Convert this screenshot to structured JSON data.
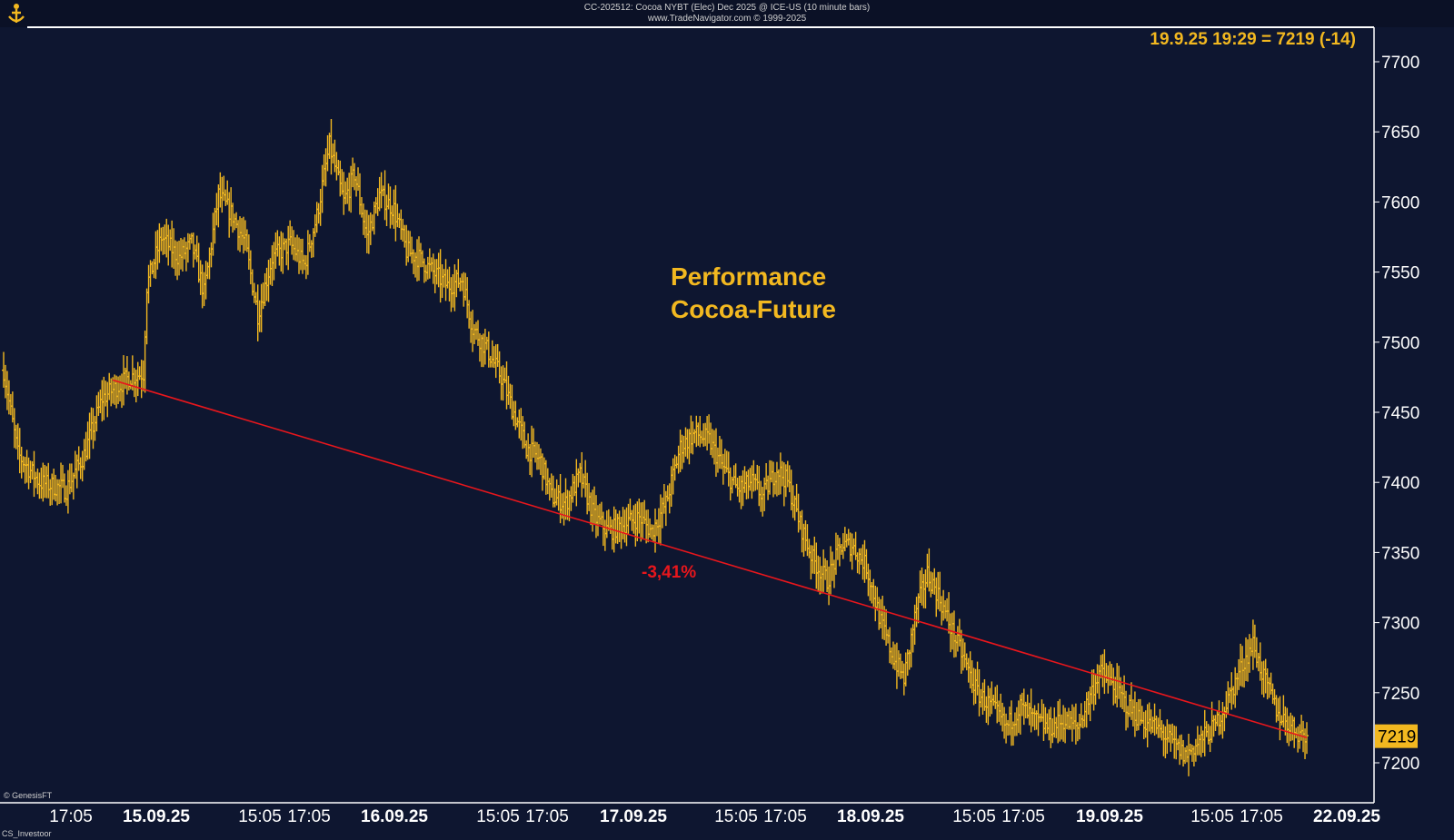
{
  "header": {
    "line1": "CC-202512:  Cocoa NYBT (Elec) Dec 2025 @ ICE-US  (10 minute bars)",
    "line2": "www.TradeNavigator.com © 1999-2025"
  },
  "corner": {
    "bottom_left_1": "© GenesisFT",
    "bottom_left_2": "CS_Investoor"
  },
  "colors": {
    "background": "#0e1630",
    "bars": "#f2b820",
    "trendline": "#e8161c",
    "title": "#f2b820"
  },
  "chart_data": {
    "type": "ohlc",
    "title": "Performance\nCocoa-Future",
    "title_lines": [
      "Performance",
      "Cocoa-Future"
    ],
    "last_price_readout": "19.9.25 19:29 = 7219 (-14)",
    "last_price_tag": "7219",
    "last_price": 7219,
    "ylim": [
      7170,
      7720
    ],
    "y_ticks": [
      7200,
      7250,
      7300,
      7350,
      7400,
      7450,
      7500,
      7550,
      7600,
      7650,
      7700
    ],
    "x_tick_labels": [
      {
        "label": "17:05",
        "bold": false
      },
      {
        "label": "15.09.25",
        "bold": true
      },
      {
        "label": "15:05",
        "bold": false
      },
      {
        "label": "17:05",
        "bold": false
      },
      {
        "label": "16.09.25",
        "bold": true
      },
      {
        "label": "15:05",
        "bold": false
      },
      {
        "label": "17:05",
        "bold": false
      },
      {
        "label": "17.09.25",
        "bold": true
      },
      {
        "label": "15:05",
        "bold": false
      },
      {
        "label": "17:05",
        "bold": false
      },
      {
        "label": "18.09.25",
        "bold": true
      },
      {
        "label": "15:05",
        "bold": false
      },
      {
        "label": "17:05",
        "bold": false
      },
      {
        "label": "19.09.25",
        "bold": true
      },
      {
        "label": "15:05",
        "bold": false
      },
      {
        "label": "17:05",
        "bold": false
      },
      {
        "label": "22.09.25",
        "bold": true
      }
    ],
    "trendline": {
      "start_price": 7473,
      "end_price": 7218,
      "label": "-3,41%"
    },
    "price_path": [
      [
        0,
        7480
      ],
      [
        8,
        7420
      ],
      [
        20,
        7400
      ],
      [
        35,
        7395
      ],
      [
        45,
        7420
      ],
      [
        55,
        7460
      ],
      [
        70,
        7475
      ],
      [
        78,
        7478
      ],
      [
        80,
        7540
      ],
      [
        88,
        7575
      ],
      [
        98,
        7560
      ],
      [
        105,
        7570
      ],
      [
        112,
        7535
      ],
      [
        120,
        7605
      ],
      [
        128,
        7590
      ],
      [
        135,
        7570
      ],
      [
        142,
        7520
      ],
      [
        150,
        7560
      ],
      [
        160,
        7570
      ],
      [
        168,
        7555
      ],
      [
        175,
        7590
      ],
      [
        182,
        7640
      ],
      [
        190,
        7600
      ],
      [
        196,
        7620
      ],
      [
        203,
        7575
      ],
      [
        210,
        7605
      ],
      [
        218,
        7595
      ],
      [
        225,
        7565
      ],
      [
        232,
        7560
      ],
      [
        240,
        7550
      ],
      [
        248,
        7540
      ],
      [
        256,
        7545
      ],
      [
        262,
        7510
      ],
      [
        270,
        7495
      ],
      [
        278,
        7475
      ],
      [
        285,
        7450
      ],
      [
        292,
        7425
      ],
      [
        300,
        7415
      ],
      [
        306,
        7390
      ],
      [
        314,
        7385
      ],
      [
        322,
        7405
      ],
      [
        330,
        7375
      ],
      [
        338,
        7365
      ],
      [
        346,
        7370
      ],
      [
        355,
        7375
      ],
      [
        362,
        7365
      ],
      [
        370,
        7385
      ],
      [
        378,
        7425
      ],
      [
        386,
        7435
      ],
      [
        394,
        7430
      ],
      [
        402,
        7410
      ],
      [
        410,
        7395
      ],
      [
        418,
        7400
      ],
      [
        424,
        7390
      ],
      [
        432,
        7410
      ],
      [
        438,
        7400
      ],
      [
        445,
        7370
      ],
      [
        452,
        7345
      ],
      [
        460,
        7330
      ],
      [
        468,
        7355
      ],
      [
        474,
        7355
      ],
      [
        482,
        7340
      ],
      [
        490,
        7300
      ],
      [
        497,
        7275
      ],
      [
        503,
        7260
      ],
      [
        510,
        7310
      ],
      [
        516,
        7335
      ],
      [
        522,
        7320
      ],
      [
        528,
        7300
      ],
      [
        536,
        7275
      ],
      [
        544,
        7250
      ],
      [
        552,
        7240
      ],
      [
        560,
        7225
      ],
      [
        568,
        7240
      ],
      [
        576,
        7230
      ],
      [
        584,
        7225
      ],
      [
        592,
        7230
      ],
      [
        600,
        7225
      ],
      [
        606,
        7245
      ],
      [
        612,
        7265
      ],
      [
        620,
        7255
      ],
      [
        628,
        7240
      ],
      [
        636,
        7230
      ],
      [
        644,
        7225
      ],
      [
        652,
        7215
      ],
      [
        660,
        7205
      ],
      [
        668,
        7215
      ],
      [
        676,
        7225
      ],
      [
        684,
        7245
      ],
      [
        692,
        7270
      ],
      [
        698,
        7285
      ],
      [
        704,
        7260
      ],
      [
        712,
        7235
      ],
      [
        720,
        7225
      ],
      [
        728,
        7218
      ]
    ]
  }
}
